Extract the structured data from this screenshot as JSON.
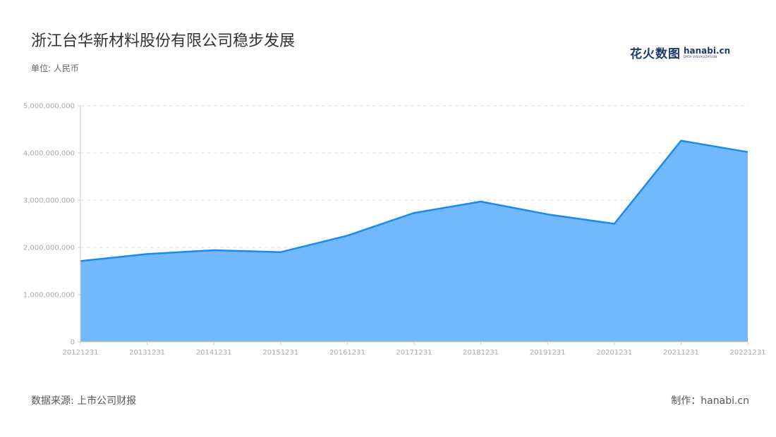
{
  "header": {
    "title": "浙江台华新材料股份有限公司稳步发展",
    "unit": "单位: 人民币"
  },
  "logo": {
    "cn_text": "花火数图",
    "en_text": "hanabi.cn",
    "en_sub": "DATA VISUALIZATION"
  },
  "footer": {
    "source": "数据来源: 上市公司财报",
    "credit": "制作：hanabi.cn"
  },
  "colors": {
    "line": "#2188e8",
    "area": "#72b8fd",
    "grid": "#dddddd",
    "axis": "#cccccc"
  },
  "chart_data": {
    "type": "area",
    "x": [
      "20121231",
      "20131231",
      "20141231",
      "20151231",
      "20161231",
      "20171231",
      "20181231",
      "20191231",
      "20201231",
      "20211231",
      "20221231"
    ],
    "series": [
      {
        "values": [
          1710000000,
          1860000000,
          1940000000,
          1900000000,
          2250000000,
          2730000000,
          2970000000,
          2700000000,
          2500000000,
          4260000000,
          4020000000
        ]
      }
    ],
    "yticks": [
      0,
      1000000000,
      2000000000,
      3000000000,
      4000000000,
      5000000000
    ],
    "ytick_labels": [
      "0",
      "1,000,000,000",
      "2,000,000,000",
      "3,000,000,000",
      "4,000,000,000",
      "5,000,000,000"
    ],
    "ylim": [
      0,
      5000000000
    ],
    "grid": true,
    "legend": "none"
  }
}
